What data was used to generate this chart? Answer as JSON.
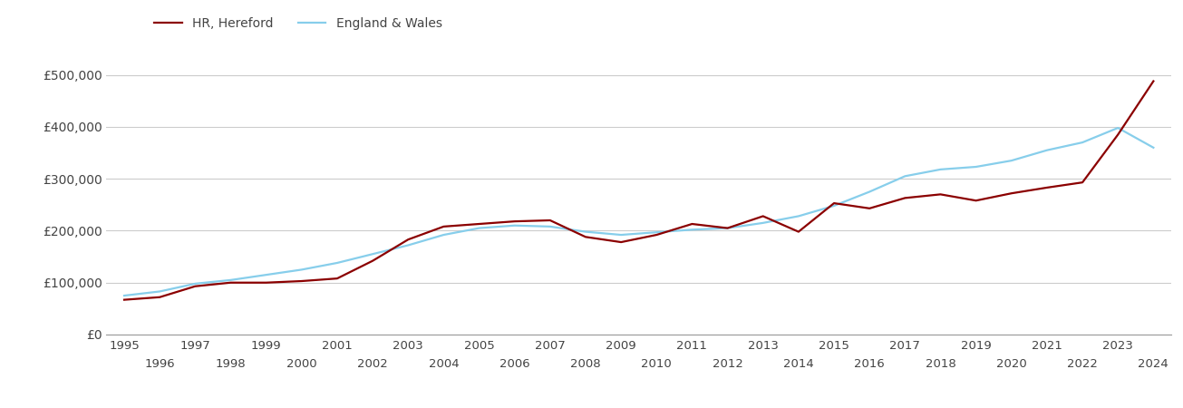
{
  "hereford": {
    "years": [
      1995,
      1996,
      1997,
      1998,
      1999,
      2000,
      2001,
      2002,
      2003,
      2004,
      2005,
      2006,
      2007,
      2008,
      2009,
      2010,
      2011,
      2012,
      2013,
      2014,
      2015,
      2016,
      2017,
      2018,
      2019,
      2020,
      2021,
      2022,
      2023,
      2024
    ],
    "values": [
      67000,
      72000,
      93000,
      100000,
      100000,
      103000,
      108000,
      142000,
      183000,
      208000,
      213000,
      218000,
      220000,
      188000,
      178000,
      192000,
      213000,
      205000,
      228000,
      198000,
      253000,
      243000,
      263000,
      270000,
      258000,
      272000,
      283000,
      293000,
      385000,
      488000
    ]
  },
  "england_wales": {
    "years": [
      1995,
      1996,
      1997,
      1998,
      1999,
      2000,
      2001,
      2002,
      2003,
      2004,
      2005,
      2006,
      2007,
      2008,
      2009,
      2010,
      2011,
      2012,
      2013,
      2014,
      2015,
      2016,
      2017,
      2018,
      2019,
      2020,
      2021,
      2022,
      2023,
      2024
    ],
    "values": [
      75000,
      83000,
      98000,
      105000,
      115000,
      125000,
      138000,
      155000,
      172000,
      192000,
      205000,
      210000,
      208000,
      198000,
      192000,
      197000,
      202000,
      205000,
      215000,
      228000,
      248000,
      275000,
      305000,
      318000,
      323000,
      335000,
      355000,
      370000,
      398000,
      360000
    ]
  },
  "hereford_color": "#8B0000",
  "england_wales_color": "#87CEEB",
  "background_color": "#ffffff",
  "grid_color": "#cccccc",
  "ylim": [
    0,
    550000
  ],
  "yticks": [
    0,
    100000,
    200000,
    300000,
    400000,
    500000
  ],
  "ytick_labels": [
    "£0",
    "£100,000",
    "£200,000",
    "£300,000",
    "£400,000",
    "£500,000"
  ],
  "legend_hereford": "HR, Hereford",
  "legend_england_wales": "England & Wales",
  "line_width": 1.6,
  "odd_years": [
    1995,
    1997,
    1999,
    2001,
    2003,
    2005,
    2007,
    2009,
    2011,
    2013,
    2015,
    2017,
    2019,
    2021,
    2023
  ],
  "even_years": [
    1996,
    1998,
    2000,
    2002,
    2004,
    2006,
    2008,
    2010,
    2012,
    2014,
    2016,
    2018,
    2020,
    2022,
    2024
  ]
}
